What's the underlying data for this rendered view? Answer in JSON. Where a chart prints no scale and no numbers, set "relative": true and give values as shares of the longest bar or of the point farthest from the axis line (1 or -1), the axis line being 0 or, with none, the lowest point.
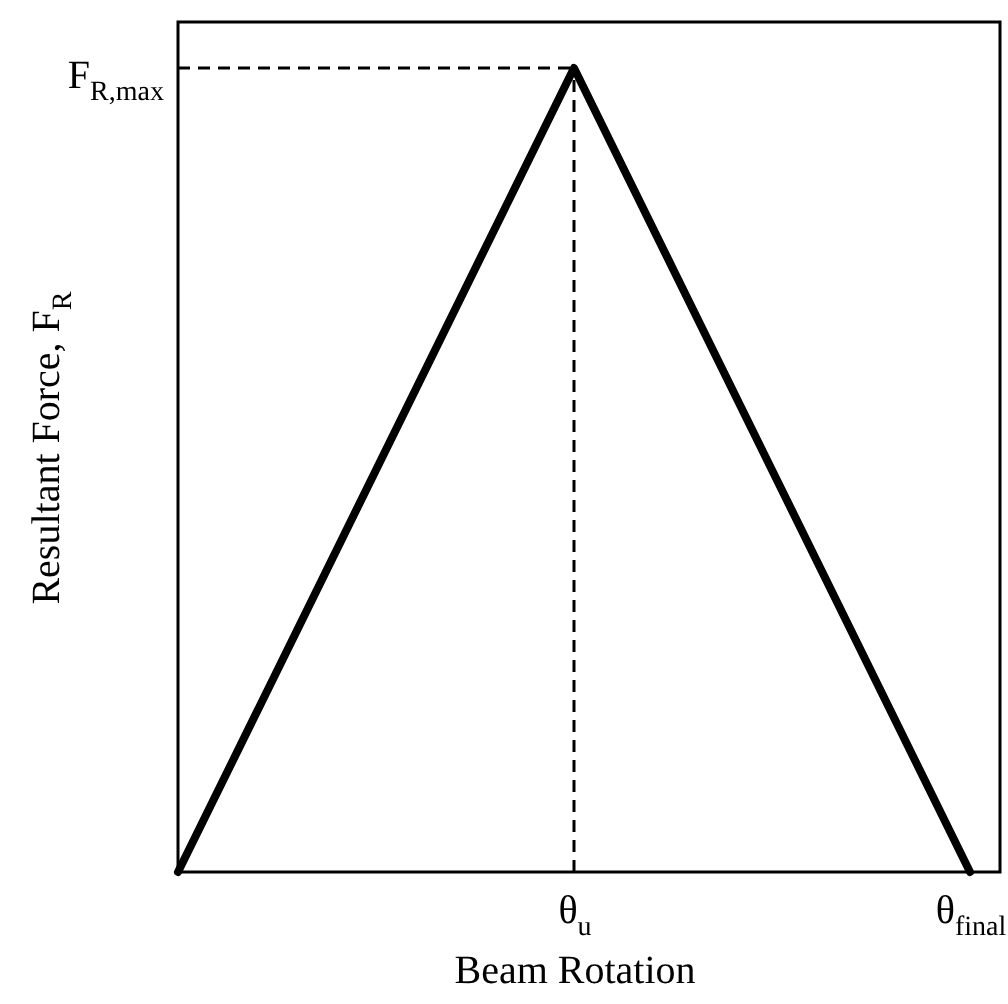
{
  "chart_data": {
    "type": "line",
    "xlabel": "Beam Rotation",
    "ylabel": "Resultant Force, F$_{R}$",
    "relative": true,
    "categories": [
      null,
      "θ$_{u}$",
      "θ$_{final}$"
    ],
    "series": [
      {
        "color": "#000000",
        "values": [
          0,
          1,
          0
        ]
      }
    ],
    "ref_lines": [
      {
        "axis": "x",
        "value": "θ$_{u}$",
        "color": "#000000",
        "line_style": "dashed"
      },
      {
        "axis": "y",
        "value": 1,
        "label": "F$_{R,max}$",
        "color": "#000000",
        "line_style": "dashed"
      }
    ]
  }
}
